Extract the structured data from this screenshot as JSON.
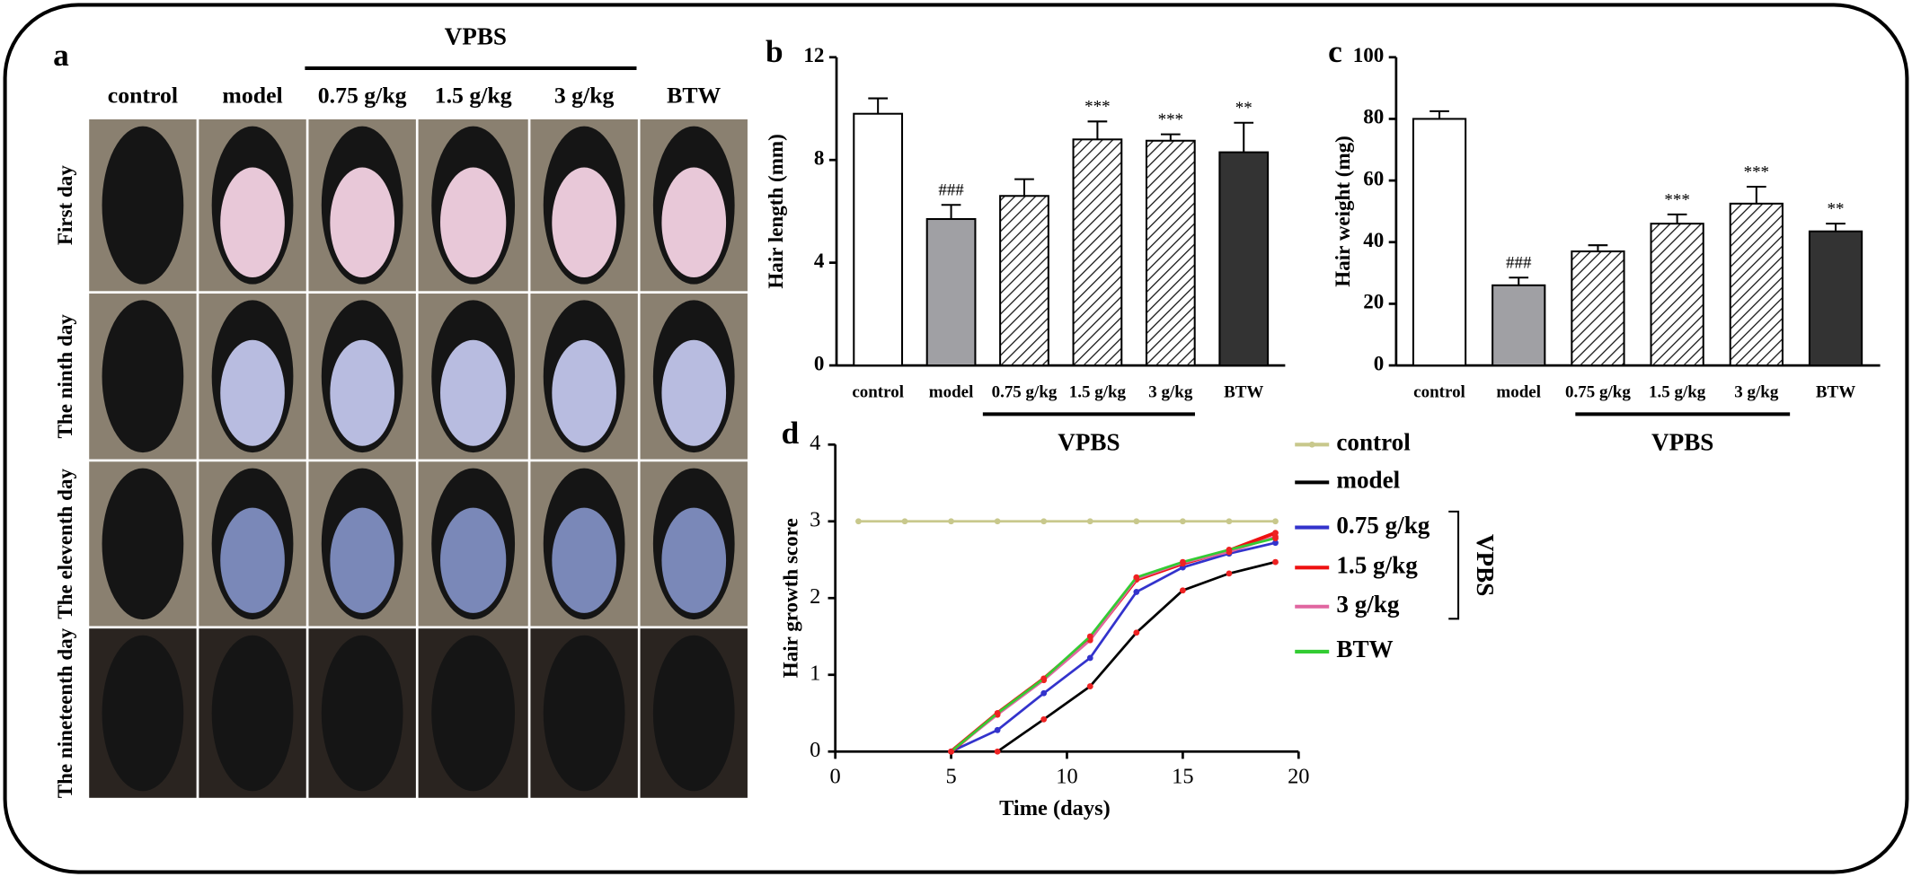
{
  "panel_a": {
    "label": "a",
    "group_label": "VPBS",
    "columns": [
      "control",
      "model",
      "0.75 g/kg",
      "1.5 g/kg",
      "3 g/kg",
      "BTW"
    ],
    "rows": [
      "First day",
      "The ninth day",
      "The eleventh day",
      "The nineteenth day"
    ]
  },
  "chart_data": [
    {
      "type": "bar",
      "panel_label": "b",
      "ylabel": "Hair length (mm)",
      "categories": [
        "control",
        "model",
        "0.75 g/kg",
        "1.5 g/kg",
        "3 g/kg",
        "BTW"
      ],
      "values": [
        9.8,
        5.7,
        6.6,
        8.8,
        8.75,
        8.3
      ],
      "errors": [
        0.6,
        0.55,
        0.65,
        0.7,
        0.25,
        1.15
      ],
      "annotations": [
        null,
        "###",
        null,
        "***",
        "***",
        "**"
      ],
      "fills": [
        "#ffffff",
        "#a0a0a4",
        "hatch",
        "hatch",
        "hatch",
        "#333333"
      ],
      "group_label": "VPBS",
      "ylim": [
        0,
        12
      ],
      "yticks": [
        0,
        4,
        8,
        12
      ]
    },
    {
      "type": "bar",
      "panel_label": "c",
      "ylabel": "Hair weight (mg)",
      "categories": [
        "control",
        "model",
        "0.75 g/kg",
        "1.5 g/kg",
        "3 g/kg",
        "BTW"
      ],
      "values": [
        80,
        26,
        37,
        46,
        52.5,
        43.5
      ],
      "errors": [
        2.5,
        2.5,
        2,
        3,
        5.5,
        2.5
      ],
      "annotations": [
        null,
        "###",
        null,
        "***",
        "***",
        "**"
      ],
      "fills": [
        "#ffffff",
        "#a0a0a4",
        "hatch",
        "hatch",
        "hatch",
        "#333333"
      ],
      "group_label": "VPBS",
      "ylim": [
        0,
        100
      ],
      "yticks": [
        0,
        20,
        40,
        60,
        80,
        100
      ]
    },
    {
      "type": "line",
      "panel_label": "d",
      "xlabel": "Time (days)",
      "ylabel": "Hair growth score",
      "x": [
        1,
        3,
        5,
        7,
        9,
        11,
        13,
        15,
        17,
        19
      ],
      "series": [
        {
          "name": "control",
          "color": "#c8c88c",
          "values": [
            3,
            3,
            3,
            3,
            3,
            3,
            3,
            3,
            3,
            3
          ]
        },
        {
          "name": "model",
          "color": "#000000",
          "values": [
            null,
            null,
            null,
            0,
            0.42,
            0.85,
            1.55,
            2.1,
            2.32,
            2.47
          ]
        },
        {
          "name": "0.75 g/kg",
          "color": "#3333cc",
          "values": [
            null,
            null,
            0,
            0.28,
            0.76,
            1.22,
            2.08,
            2.4,
            2.58,
            2.72
          ]
        },
        {
          "name": "1.5 g/kg",
          "color": "#ee1111",
          "values": [
            null,
            null,
            0,
            0.5,
            0.95,
            1.47,
            2.24,
            2.45,
            2.62,
            2.85
          ]
        },
        {
          "name": "3 g/kg",
          "color": "#e066a0",
          "values": [
            null,
            null,
            0,
            0.48,
            0.93,
            1.45,
            2.25,
            2.46,
            2.6,
            2.8
          ]
        },
        {
          "name": "BTW",
          "color": "#33cc33",
          "values": [
            null,
            null,
            0,
            0.5,
            0.95,
            1.5,
            2.27,
            2.47,
            2.63,
            2.78
          ]
        }
      ],
      "legend_group": "VPBS",
      "xlim": [
        0,
        20
      ],
      "xticks": [
        0,
        5,
        10,
        15,
        20
      ],
      "ylim": [
        0,
        4
      ],
      "yticks": [
        0,
        1,
        2,
        3,
        4
      ]
    }
  ]
}
